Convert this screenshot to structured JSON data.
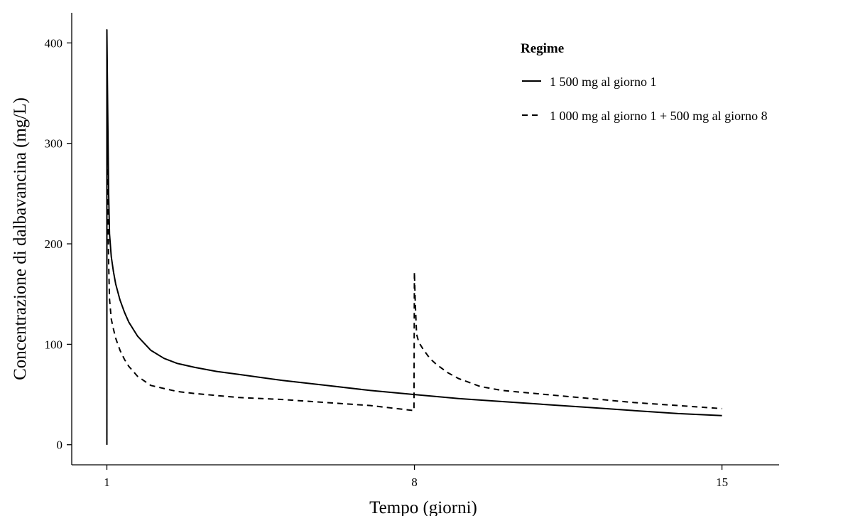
{
  "chart_data": {
    "type": "line",
    "xlabel": "Tempo (giorni)",
    "ylabel": "Concentrazione di dalbavancina (mg/L)",
    "xlim": [
      0.2,
      16.3
    ],
    "ylim": [
      -20,
      430
    ],
    "x_ticks": [
      1,
      8,
      15
    ],
    "y_ticks": [
      0,
      100,
      200,
      300,
      400
    ],
    "grid": false,
    "legend": {
      "title": "Regime",
      "placement": "top-right"
    },
    "series": [
      {
        "name": "1 500 mg al giorno 1",
        "style": "solid",
        "color": "#000000",
        "x": [
          1.0,
          1.02,
          1.04,
          1.06,
          1.1,
          1.15,
          1.2,
          1.3,
          1.4,
          1.5,
          1.7,
          2.0,
          2.3,
          2.6,
          3.0,
          3.5,
          4.0,
          5.0,
          6.0,
          7.0,
          8.0,
          9.0,
          10.0,
          11.0,
          12.0,
          13.0,
          14.0,
          15.0
        ],
        "y": [
          413,
          330,
          250,
          210,
          187,
          172,
          160,
          144,
          132,
          122,
          108,
          94,
          86,
          81,
          77,
          73,
          70,
          64,
          59,
          54,
          50,
          46,
          43,
          40,
          37,
          34,
          31,
          29
        ]
      },
      {
        "name": "1 000 mg al giorno 1 + 500 mg al giorno 8",
        "style": "dashed",
        "color": "#000000",
        "x": [
          1.0,
          1.02,
          1.04,
          1.06,
          1.1,
          1.15,
          1.2,
          1.3,
          1.4,
          1.5,
          1.7,
          2.0,
          2.3,
          2.6,
          3.0,
          3.5,
          4.0,
          5.0,
          6.0,
          7.0,
          7.99,
          8.0,
          8.02,
          8.05,
          8.1,
          8.2,
          8.35,
          8.5,
          8.75,
          9.0,
          9.5,
          10.0,
          11.0,
          12.0,
          13.0,
          14.0,
          15.0
        ],
        "y": [
          360,
          250,
          180,
          145,
          125,
          115,
          106,
          94,
          85,
          78,
          68,
          59,
          56,
          53,
          51,
          49,
          47,
          45,
          42,
          39,
          34,
          172,
          140,
          110,
          102,
          95,
          86,
          80,
          72,
          66,
          58,
          54,
          50,
          46,
          42,
          39,
          36
        ]
      }
    ]
  }
}
